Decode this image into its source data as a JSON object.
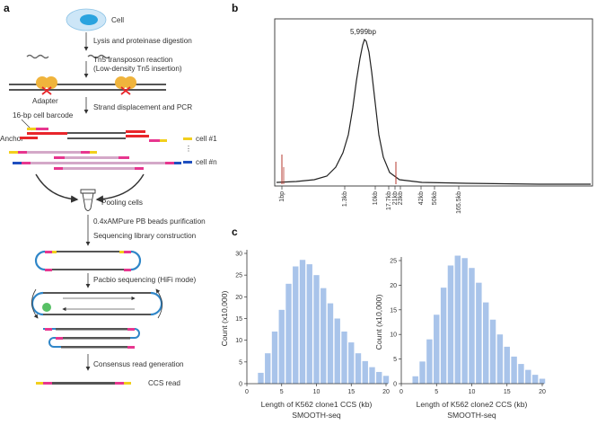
{
  "panels": {
    "a": "a",
    "b": "b",
    "c": "c"
  },
  "workflow": {
    "steps": [
      "Cell",
      "Lysis and proteinase digestion",
      "Tn5 transposon reaction",
      "(Low-density Tn5 insertion)",
      "Strand displacement and PCR",
      "Pooling cells",
      "0.4xAMPure PB beads purification",
      "Sequencing library construction",
      "Pacbio sequencing (HiFi mode)",
      "Consensus read generation",
      "CCS read"
    ],
    "labels": {
      "adapter": "Adapter",
      "barcode": "16-bp cell barcode",
      "anchor": "Anchor",
      "cell_first": "cell #1",
      "cell_last": "cell #n"
    },
    "colors": {
      "cell_outer": "#cde6f7",
      "cell_nucleus": "#2aa3df",
      "dna": "#555555",
      "red": "#e8262b",
      "pink": "#e7368f",
      "orange": "#f5a623",
      "yellow": "#f2cf1d",
      "blue": "#1f4fbf",
      "loop": "#2f86c8",
      "tn5": "#f0b43c"
    }
  },
  "chart_data": [
    {
      "type": "line",
      "peak_label": "5,999bp",
      "x_ticks": [
        "1bp",
        "1.3kb",
        "10kb",
        "17.7kb",
        "21kb",
        "23kb",
        "42kb",
        "50kb",
        "165.5kb"
      ],
      "colors": {
        "trace": "#222222",
        "spikes": "#b5392f"
      }
    },
    {
      "type": "bar",
      "title": "",
      "xlabel": "Length of K562 clone1 CCS (kb)",
      "sublabel": "SMOOTH-seq",
      "ylabel": "Count (x10,000)",
      "x": [
        2,
        3,
        4,
        5,
        6,
        7,
        8,
        9,
        10,
        11,
        12,
        13,
        14,
        15,
        16,
        17,
        18,
        19,
        20
      ],
      "values": [
        2.5,
        7,
        12,
        17,
        23,
        27,
        28.5,
        27.5,
        25,
        22,
        18.5,
        15,
        12,
        9.5,
        7,
        5.2,
        3.8,
        2.7,
        1.8
      ],
      "xlim": [
        0,
        20
      ],
      "ylim": [
        0,
        30
      ],
      "x_ticks": [
        "0",
        "5",
        "10",
        "15",
        "20"
      ],
      "y_ticks": [
        "0",
        "5",
        "10",
        "15",
        "20",
        "25",
        "30"
      ],
      "color": "#a9c4ea"
    },
    {
      "type": "bar",
      "title": "",
      "xlabel": "Length of K562 clone2 CCS (kb)",
      "sublabel": "SMOOTH-seq",
      "ylabel": "Count (x10,000)",
      "x": [
        2,
        3,
        4,
        5,
        6,
        7,
        8,
        9,
        10,
        11,
        12,
        13,
        14,
        15,
        16,
        17,
        18,
        19,
        20
      ],
      "values": [
        1.5,
        4.5,
        9,
        14,
        19.5,
        24,
        26,
        25.5,
        23.5,
        20.5,
        16.5,
        13,
        10,
        7.5,
        5.5,
        4,
        2.8,
        1.8,
        1
      ],
      "xlim": [
        0,
        20
      ],
      "ylim": [
        0,
        25
      ],
      "x_ticks": [
        "0",
        "5",
        "10",
        "15",
        "20"
      ],
      "y_ticks": [
        "0",
        "5",
        "10",
        "15",
        "20",
        "25"
      ],
      "color": "#a9c4ea"
    }
  ]
}
